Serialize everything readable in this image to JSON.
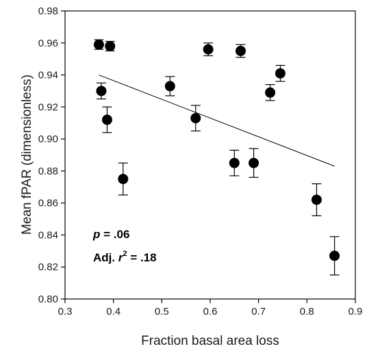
{
  "chart_data": {
    "type": "scatter",
    "title": "",
    "xlabel": "Fraction basal area loss",
    "ylabel": "Mean fPAR (dimensionless)",
    "xlim": [
      0.3,
      0.9
    ],
    "ylim": [
      0.8,
      0.98
    ],
    "xticks": [
      "0.3",
      "0.4",
      "0.5",
      "0.6",
      "0.7",
      "0.8",
      "0.9"
    ],
    "yticks": [
      "0.80",
      "0.82",
      "0.84",
      "0.86",
      "0.88",
      "0.90",
      "0.92",
      "0.94",
      "0.96",
      "0.98"
    ],
    "grid": false,
    "points": [
      {
        "x": 0.37,
        "y": 0.959,
        "err": 0.003
      },
      {
        "x": 0.393,
        "y": 0.958,
        "err": 0.003
      },
      {
        "x": 0.375,
        "y": 0.93,
        "err": 0.005
      },
      {
        "x": 0.387,
        "y": 0.912,
        "err": 0.008
      },
      {
        "x": 0.42,
        "y": 0.875,
        "err": 0.01
      },
      {
        "x": 0.517,
        "y": 0.933,
        "err": 0.006
      },
      {
        "x": 0.57,
        "y": 0.913,
        "err": 0.008
      },
      {
        "x": 0.596,
        "y": 0.956,
        "err": 0.004
      },
      {
        "x": 0.65,
        "y": 0.885,
        "err": 0.008
      },
      {
        "x": 0.663,
        "y": 0.955,
        "err": 0.004
      },
      {
        "x": 0.69,
        "y": 0.885,
        "err": 0.009
      },
      {
        "x": 0.724,
        "y": 0.929,
        "err": 0.005
      },
      {
        "x": 0.745,
        "y": 0.941,
        "err": 0.005
      },
      {
        "x": 0.82,
        "y": 0.862,
        "err": 0.01
      },
      {
        "x": 0.857,
        "y": 0.827,
        "err": 0.012
      }
    ],
    "trendline": {
      "x": [
        0.37,
        0.857
      ],
      "y": [
        0.94,
        0.883
      ]
    },
    "annotations": {
      "p_label": "p",
      "p_value": " = .06",
      "r2_prefix": "Adj. ",
      "r2_var": "r",
      "r2_exp": "2",
      "r2_value": " = .18"
    }
  }
}
